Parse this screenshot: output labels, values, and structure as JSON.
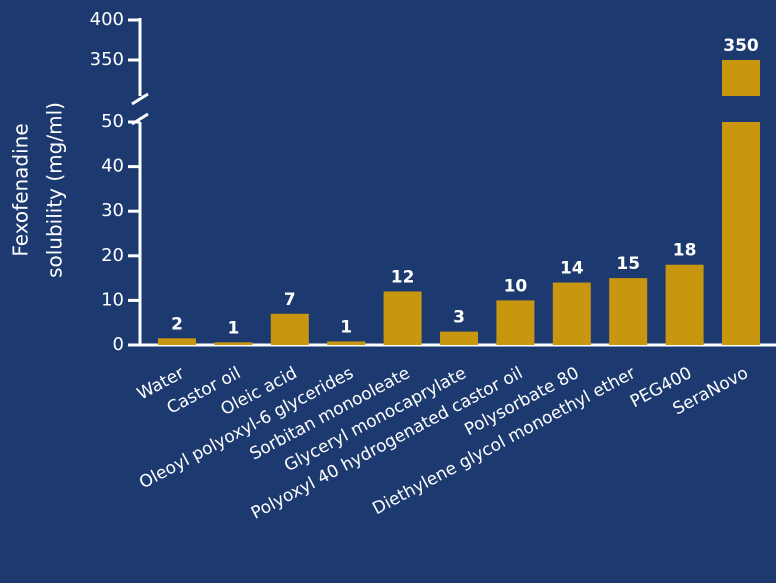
{
  "chart_data": {
    "type": "bar",
    "ylabel": [
      "Fexofenadine",
      "solubility (mg/ml)"
    ],
    "categories": [
      "Water",
      "Castor oil",
      "Oleic acid",
      "Oleoyl polyoxyl-6 glycerides",
      "Sorbitan monooleate",
      "Glyceryl monocaprylate",
      "Polyoxyl 40 hydrogenated castor oil",
      "Polysorbate 80",
      "Diethylene glycol monoethyl ether",
      "PEG400",
      "SeraNovo"
    ],
    "values": [
      1.5,
      0.6,
      7,
      0.8,
      12,
      3,
      10,
      14,
      15,
      18,
      350
    ],
    "value_labels": [
      "2",
      "1",
      "7",
      "1",
      "12",
      "3",
      "10",
      "14",
      "15",
      "18",
      "350"
    ],
    "color": "#c8960f",
    "ylim": [
      0,
      50
    ],
    "yticks": [
      0,
      10,
      20,
      30,
      40,
      50
    ],
    "ylim_upper": [
      305,
      400
    ],
    "yticks_upper": [
      350,
      400
    ]
  }
}
